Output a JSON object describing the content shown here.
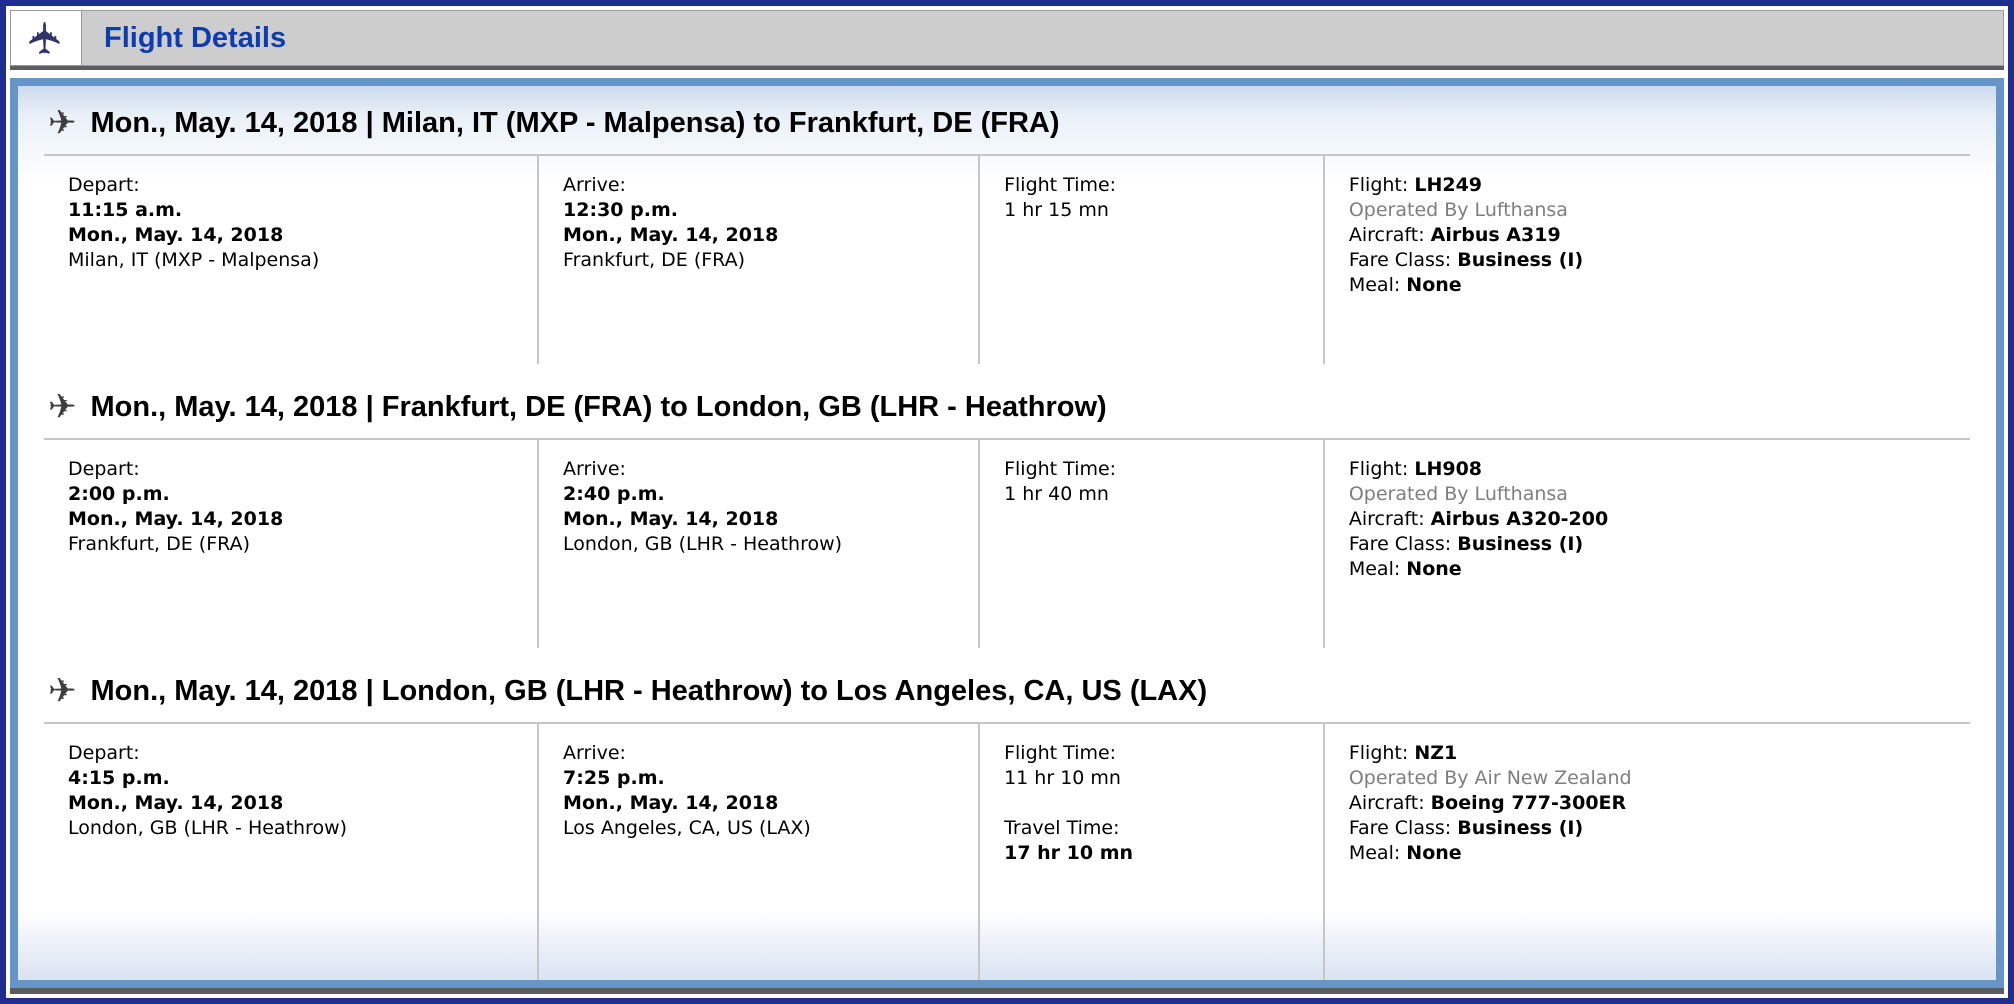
{
  "header": {
    "title": "Flight Details"
  },
  "icons": {
    "header_plane": "✈",
    "segment_plane": "✈"
  },
  "colors": {
    "outer_border_navy": "#1f2d8e",
    "title_text_blue": "#0c3cae",
    "header_bar_gray": "#cdcdcd",
    "header_plane_navy": "#33316b",
    "panel_frame_blue": "#6795c8",
    "shadow_gray": "#5d5d61",
    "separator_gray": "#c6c6c6",
    "operated_by_gray": "#7e7e7e",
    "gradient_top_blue": "#cbdaec",
    "gradient_bottom_blue": "#d9e3f1"
  },
  "segments": [
    {
      "route_title": "Mon., May. 14, 2018 | Milan, IT (MXP - Malpensa) to Frankfurt, DE (FRA)",
      "depart": {
        "label": "Depart:",
        "time": "11:15 a.m.",
        "date": "Mon., May. 14, 2018",
        "location": "Milan, IT (MXP - Malpensa)"
      },
      "arrive": {
        "label": "Arrive:",
        "time": "12:30 p.m.",
        "date": "Mon., May. 14, 2018",
        "location": "Frankfurt, DE (FRA)"
      },
      "duration": {
        "flight_time_label": "Flight Time:",
        "flight_time": "1 hr 15 mn"
      },
      "flight_info": {
        "flight_label": "Flight:",
        "flight_number": "LH249",
        "operated_by": "Operated By Lufthansa",
        "aircraft_label": "Aircraft:",
        "aircraft": "Airbus A319",
        "fare_class_label": "Fare Class:",
        "fare_class": "Business (I)",
        "meal_label": "Meal:",
        "meal": "None"
      }
    },
    {
      "route_title": "Mon., May. 14, 2018 | Frankfurt, DE (FRA) to London, GB (LHR - Heathrow)",
      "depart": {
        "label": "Depart:",
        "time": "2:00 p.m.",
        "date": "Mon., May. 14, 2018",
        "location": "Frankfurt, DE (FRA)"
      },
      "arrive": {
        "label": "Arrive:",
        "time": "2:40 p.m.",
        "date": "Mon., May. 14, 2018",
        "location": "London, GB (LHR - Heathrow)"
      },
      "duration": {
        "flight_time_label": "Flight Time:",
        "flight_time": "1 hr 40 mn"
      },
      "flight_info": {
        "flight_label": "Flight:",
        "flight_number": "LH908",
        "operated_by": "Operated By Lufthansa",
        "aircraft_label": "Aircraft:",
        "aircraft": "Airbus A320-200",
        "fare_class_label": "Fare Class:",
        "fare_class": "Business (I)",
        "meal_label": "Meal:",
        "meal": "None"
      }
    },
    {
      "route_title": "Mon., May. 14, 2018 | London, GB (LHR - Heathrow) to Los Angeles, CA, US (LAX)",
      "depart": {
        "label": "Depart:",
        "time": "4:15 p.m.",
        "date": "Mon., May. 14, 2018",
        "location": "London, GB (LHR - Heathrow)"
      },
      "arrive": {
        "label": "Arrive:",
        "time": "7:25 p.m.",
        "date": "Mon., May. 14, 2018",
        "location": "Los Angeles, CA, US (LAX)"
      },
      "duration": {
        "flight_time_label": "Flight Time:",
        "flight_time": "11 hr 10 mn",
        "travel_time_label": "Travel Time:",
        "travel_time": "17 hr 10 mn"
      },
      "flight_info": {
        "flight_label": "Flight:",
        "flight_number": "NZ1",
        "operated_by": "Operated By Air New Zealand",
        "aircraft_label": "Aircraft:",
        "aircraft": "Boeing 777-300ER",
        "fare_class_label": "Fare Class:",
        "fare_class": "Business (I)",
        "meal_label": "Meal:",
        "meal": "None"
      }
    }
  ]
}
